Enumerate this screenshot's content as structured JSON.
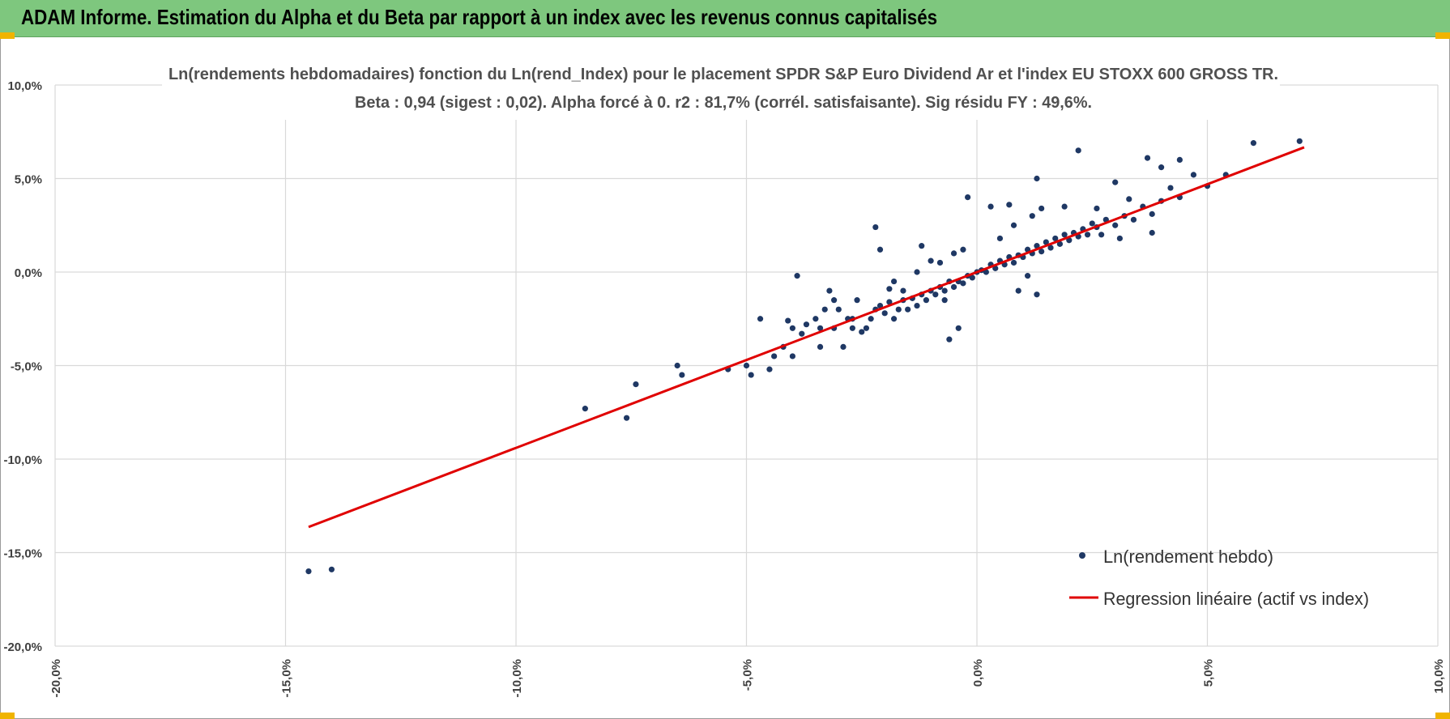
{
  "header": {
    "title": "ADAM Informe. Estimation du Alpha et du Beta par rapport à un index avec les revenus connus capitalisés"
  },
  "colors": {
    "header_bg": "#7ec77e",
    "point": "#1f3864",
    "regression": "#e00000",
    "grid": "#d9d9d9"
  },
  "chart_data": {
    "type": "scatter",
    "title_lines": [
      "Ln(rendements hebdomadaires) fonction du Ln(rend_Index) pour le placement SPDR S&P Euro Dividend Ar et l'index EU STOXX 600 GROSS TR.",
      "Beta : 0,94 (sigest : 0,02).  Alpha forcé à 0. r2 : 81,7% (corrél. satisfaisante). Sig résidu FY : 49,6%."
    ],
    "x_range": [
      -0.2,
      0.1
    ],
    "y_range": [
      -0.2,
      0.1
    ],
    "x_ticks": [
      {
        "value": -0.2,
        "label": "-20,0%"
      },
      {
        "value": -0.15,
        "label": "-15,0%"
      },
      {
        "value": -0.1,
        "label": "-10,0%"
      },
      {
        "value": -0.05,
        "label": "-5,0%"
      },
      {
        "value": 0.0,
        "label": "0,0%"
      },
      {
        "value": 0.05,
        "label": "5,0%"
      },
      {
        "value": 0.1,
        "label": "10,0%"
      }
    ],
    "y_ticks": [
      {
        "value": 0.1,
        "label": "10,0%"
      },
      {
        "value": 0.05,
        "label": "5,0%"
      },
      {
        "value": 0.0,
        "label": "0,0%"
      },
      {
        "value": -0.05,
        "label": "-5,0%"
      },
      {
        "value": -0.1,
        "label": "-10,0%"
      },
      {
        "value": -0.15,
        "label": "-15,0%"
      },
      {
        "value": -0.2,
        "label": "-20,0%"
      }
    ],
    "grid": true,
    "legend_position": "bottom-right",
    "series": [
      {
        "name": "Ln(rendement hebdo)",
        "kind": "points",
        "points": [
          [
            -0.145,
            -0.16
          ],
          [
            -0.14,
            -0.159
          ],
          [
            -0.085,
            -0.073
          ],
          [
            -0.076,
            -0.078
          ],
          [
            -0.074,
            -0.06
          ],
          [
            -0.065,
            -0.05
          ],
          [
            -0.064,
            -0.055
          ],
          [
            -0.054,
            -0.052
          ],
          [
            -0.05,
            -0.05
          ],
          [
            -0.049,
            -0.055
          ],
          [
            -0.047,
            -0.025
          ],
          [
            -0.045,
            -0.052
          ],
          [
            -0.044,
            -0.045
          ],
          [
            -0.042,
            -0.04
          ],
          [
            -0.041,
            -0.026
          ],
          [
            -0.04,
            -0.045
          ],
          [
            -0.04,
            -0.03
          ],
          [
            -0.039,
            -0.002
          ],
          [
            -0.038,
            -0.033
          ],
          [
            -0.037,
            -0.028
          ],
          [
            -0.035,
            -0.025
          ],
          [
            -0.034,
            -0.03
          ],
          [
            -0.033,
            -0.02
          ],
          [
            -0.032,
            -0.01
          ],
          [
            -0.031,
            -0.03
          ],
          [
            -0.03,
            -0.02
          ],
          [
            -0.029,
            -0.04
          ],
          [
            -0.028,
            -0.025
          ],
          [
            -0.027,
            -0.03
          ],
          [
            -0.026,
            -0.015
          ],
          [
            -0.025,
            -0.032
          ],
          [
            -0.024,
            -0.03
          ],
          [
            -0.023,
            -0.025
          ],
          [
            -0.022,
            -0.02
          ],
          [
            -0.021,
            -0.018
          ],
          [
            -0.02,
            -0.022
          ],
          [
            -0.019,
            -0.016
          ],
          [
            -0.018,
            -0.025
          ],
          [
            -0.017,
            -0.02
          ],
          [
            -0.016,
            -0.015
          ],
          [
            -0.015,
            -0.02
          ],
          [
            -0.014,
            -0.014
          ],
          [
            -0.013,
            -0.018
          ],
          [
            -0.012,
            -0.012
          ],
          [
            -0.011,
            -0.015
          ],
          [
            -0.01,
            -0.01
          ],
          [
            -0.009,
            -0.012
          ],
          [
            -0.008,
            -0.008
          ],
          [
            -0.007,
            -0.01
          ],
          [
            -0.006,
            -0.005
          ],
          [
            -0.005,
            -0.008
          ],
          [
            -0.004,
            -0.005
          ],
          [
            -0.003,
            -0.006
          ],
          [
            -0.002,
            -0.002
          ],
          [
            -0.001,
            -0.003
          ],
          [
            0.0,
            0.0
          ],
          [
            0.001,
            0.001
          ],
          [
            0.002,
            0.0
          ],
          [
            0.003,
            0.004
          ],
          [
            0.004,
            0.002
          ],
          [
            0.005,
            0.006
          ],
          [
            0.006,
            0.004
          ],
          [
            0.007,
            0.008
          ],
          [
            0.008,
            0.005
          ],
          [
            0.009,
            0.009
          ],
          [
            0.01,
            0.008
          ],
          [
            0.011,
            0.012
          ],
          [
            0.012,
            0.01
          ],
          [
            0.013,
            0.014
          ],
          [
            0.014,
            0.011
          ],
          [
            0.015,
            0.016
          ],
          [
            0.016,
            0.013
          ],
          [
            0.017,
            0.018
          ],
          [
            0.018,
            0.015
          ],
          [
            0.019,
            0.02
          ],
          [
            0.02,
            0.017
          ],
          [
            0.021,
            0.021
          ],
          [
            0.022,
            0.019
          ],
          [
            0.023,
            0.023
          ],
          [
            0.024,
            0.02
          ],
          [
            0.025,
            0.026
          ],
          [
            0.026,
            0.024
          ],
          [
            0.027,
            0.02
          ],
          [
            0.028,
            0.028
          ],
          [
            0.03,
            0.025
          ],
          [
            0.032,
            0.03
          ],
          [
            0.034,
            0.028
          ],
          [
            0.036,
            0.035
          ],
          [
            0.038,
            0.031
          ],
          [
            0.04,
            0.038
          ],
          [
            0.042,
            0.045
          ],
          [
            0.044,
            0.04
          ],
          [
            0.047,
            0.052
          ],
          [
            0.05,
            0.046
          ],
          [
            0.054,
            0.052
          ],
          [
            0.06,
            0.069
          ],
          [
            0.07,
            0.07
          ],
          [
            -0.022,
            0.024
          ],
          [
            -0.021,
            0.012
          ],
          [
            -0.027,
            -0.025
          ],
          [
            -0.018,
            -0.005
          ],
          [
            -0.006,
            -0.036
          ],
          [
            -0.004,
            -0.03
          ],
          [
            -0.002,
            0.04
          ],
          [
            0.003,
            0.035
          ],
          [
            0.007,
            0.036
          ],
          [
            0.013,
            0.05
          ],
          [
            0.014,
            0.034
          ],
          [
            0.022,
            0.065
          ],
          [
            0.03,
            0.048
          ],
          [
            0.037,
            0.061
          ],
          [
            0.04,
            0.056
          ],
          [
            0.044,
            0.06
          ],
          [
            0.031,
            0.018
          ],
          [
            0.019,
            0.035
          ],
          [
            0.013,
            -0.012
          ],
          [
            0.009,
            -0.01
          ],
          [
            0.011,
            -0.002
          ],
          [
            0.008,
            0.025
          ],
          [
            -0.013,
            0.0
          ],
          [
            -0.012,
            0.014
          ],
          [
            -0.008,
            0.005
          ],
          [
            -0.01,
            0.006
          ],
          [
            -0.003,
            0.012
          ],
          [
            0.005,
            0.018
          ],
          [
            0.026,
            0.034
          ],
          [
            0.033,
            0.039
          ],
          [
            0.038,
            0.021
          ],
          [
            -0.034,
            -0.04
          ],
          [
            -0.031,
            -0.015
          ],
          [
            -0.019,
            -0.009
          ],
          [
            -0.016,
            -0.01
          ],
          [
            -0.007,
            -0.015
          ],
          [
            -0.005,
            0.01
          ],
          [
            0.012,
            0.03
          ]
        ]
      },
      {
        "name": "Regression linéaire (actif vs index)",
        "kind": "line",
        "points": [
          [
            -0.145,
            -0.1363
          ],
          [
            0.071,
            0.0667
          ]
        ]
      }
    ]
  }
}
